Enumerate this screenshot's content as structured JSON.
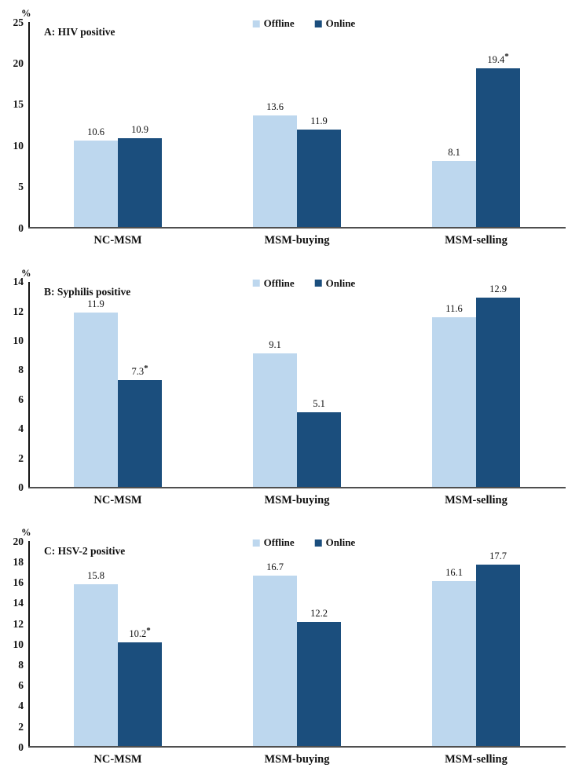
{
  "figure": {
    "unit": "%",
    "legend": [
      {
        "label": "Offline",
        "color": "#BDD7EE"
      },
      {
        "label": "Online",
        "color": "#1B4E7D"
      }
    ],
    "colors": {
      "offline": "#BDD7EE",
      "online": "#1B4E7D",
      "y_axis": "#141414",
      "baseline": "#4F4F4F",
      "text": "#111111"
    }
  },
  "chart_data": [
    {
      "type": "bar",
      "title": "A: HIV positive",
      "unit": "%",
      "categories": [
        "NC-MSM",
        "MSM-buying",
        "MSM-selling"
      ],
      "series": [
        {
          "name": "Offline",
          "color": "#BDD7EE",
          "values": [
            10.6,
            13.6,
            8.1
          ],
          "labels": [
            "10.6",
            "13.6",
            "8.1"
          ],
          "sig": [
            false,
            false,
            false
          ]
        },
        {
          "name": "Online",
          "color": "#1B4E7D",
          "values": [
            10.9,
            11.9,
            19.4
          ],
          "labels": [
            "10.9",
            "11.9",
            "19.4"
          ],
          "sig": [
            false,
            false,
            true
          ]
        }
      ],
      "ylim": [
        0,
        25
      ],
      "yticks": [
        0,
        5,
        10,
        15,
        20,
        25
      ],
      "legend_position": "top-center",
      "grid": false
    },
    {
      "type": "bar",
      "title": "B: Syphilis positive",
      "unit": "%",
      "categories": [
        "NC-MSM",
        "MSM-buying",
        "MSM-selling"
      ],
      "series": [
        {
          "name": "Offline",
          "color": "#BDD7EE",
          "values": [
            11.9,
            9.1,
            11.6
          ],
          "labels": [
            "11.9",
            "9.1",
            "11.6"
          ],
          "sig": [
            false,
            false,
            false
          ]
        },
        {
          "name": "Online",
          "color": "#1B4E7D",
          "values": [
            7.3,
            5.1,
            12.9
          ],
          "labels": [
            "7.3",
            "5.1",
            "12.9"
          ],
          "sig": [
            true,
            false,
            false
          ]
        }
      ],
      "ylim": [
        0,
        14
      ],
      "yticks": [
        0,
        2,
        4,
        6,
        8,
        10,
        12,
        14
      ],
      "legend_position": "top-center",
      "grid": false
    },
    {
      "type": "bar",
      "title": "C: HSV-2 positive",
      "unit": "%",
      "categories": [
        "NC-MSM",
        "MSM-buying",
        "MSM-selling"
      ],
      "series": [
        {
          "name": "Offline",
          "color": "#BDD7EE",
          "values": [
            15.8,
            16.7,
            16.1
          ],
          "labels": [
            "15.8",
            "16.7",
            "16.1"
          ],
          "sig": [
            false,
            false,
            false
          ]
        },
        {
          "name": "Online",
          "color": "#1B4E7D",
          "values": [
            10.2,
            12.2,
            17.7
          ],
          "labels": [
            "10.2",
            "12.2",
            "17.7"
          ],
          "sig": [
            true,
            false,
            false
          ]
        }
      ],
      "ylim": [
        0,
        20
      ],
      "yticks": [
        0,
        2,
        4,
        6,
        8,
        10,
        12,
        14,
        16,
        18,
        20
      ],
      "legend_position": "top-center",
      "grid": false
    }
  ]
}
